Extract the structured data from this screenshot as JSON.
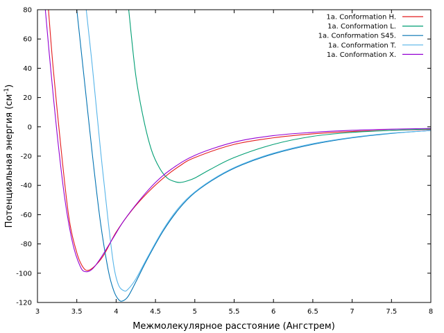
{
  "chart_data": {
    "type": "line",
    "title": "",
    "xlabel": "Межмолекулярное расстояние (Ангстрем)",
    "ylabel_main": "Потенциальная энергия (см",
    "ylabel_sup": "-1",
    "ylabel_end": ")",
    "xlim": [
      3,
      8
    ],
    "ylim": [
      -120,
      80
    ],
    "x_ticks": [
      "3",
      "3.5",
      "4",
      "4.5",
      "5",
      "5.5",
      "6",
      "6.5",
      "7",
      "7.5",
      "8"
    ],
    "y_ticks": [
      "-120",
      "-100",
      "-80",
      "-60",
      "-40",
      "-20",
      "0",
      "20",
      "40",
      "60",
      "80"
    ],
    "grid": false,
    "legend_position": "top-right",
    "series": [
      {
        "name": "1a. Conformation H.",
        "color": "#e41a1c",
        "points": [
          [
            3.14,
            80
          ],
          [
            3.2,
            40
          ],
          [
            3.3,
            -15
          ],
          [
            3.4,
            -62
          ],
          [
            3.5,
            -86
          ],
          [
            3.58,
            -96
          ],
          [
            3.65,
            -98
          ],
          [
            3.75,
            -94
          ],
          [
            3.85,
            -87
          ],
          [
            4.0,
            -72
          ],
          [
            4.2,
            -57
          ],
          [
            4.4,
            -45
          ],
          [
            4.6,
            -35
          ],
          [
            4.8,
            -27
          ],
          [
            5.0,
            -21
          ],
          [
            5.5,
            -12
          ],
          [
            6.0,
            -7.5
          ],
          [
            6.5,
            -4.8
          ],
          [
            7.0,
            -3.2
          ],
          [
            7.5,
            -2.4
          ],
          [
            8.0,
            -1.8
          ]
        ]
      },
      {
        "name": "1a. Conformation L.",
        "color": "#009e73",
        "points": [
          [
            4.16,
            80
          ],
          [
            4.25,
            35
          ],
          [
            4.35,
            5
          ],
          [
            4.45,
            -16
          ],
          [
            4.55,
            -28
          ],
          [
            4.65,
            -35
          ],
          [
            4.75,
            -37.5
          ],
          [
            4.82,
            -38
          ],
          [
            4.9,
            -37
          ],
          [
            5.0,
            -35
          ],
          [
            5.2,
            -29
          ],
          [
            5.5,
            -21
          ],
          [
            6.0,
            -12
          ],
          [
            6.5,
            -6.5
          ],
          [
            7.0,
            -3.8
          ],
          [
            7.5,
            -2.4
          ],
          [
            8.0,
            -1.5
          ]
        ]
      },
      {
        "name": "1a. Conformation S45.",
        "color": "#0072b2",
        "points": [
          [
            3.5,
            80
          ],
          [
            3.6,
            30
          ],
          [
            3.7,
            -20
          ],
          [
            3.8,
            -65
          ],
          [
            3.9,
            -98
          ],
          [
            3.97,
            -112
          ],
          [
            4.03,
            -118
          ],
          [
            4.08,
            -119
          ],
          [
            4.15,
            -116
          ],
          [
            4.25,
            -106
          ],
          [
            4.4,
            -90
          ],
          [
            4.6,
            -71
          ],
          [
            4.8,
            -56
          ],
          [
            5.0,
            -45
          ],
          [
            5.3,
            -34
          ],
          [
            5.6,
            -26
          ],
          [
            6.0,
            -18.5
          ],
          [
            6.5,
            -12
          ],
          [
            7.0,
            -7.5
          ],
          [
            7.5,
            -4.5
          ],
          [
            8.0,
            -2.5
          ]
        ]
      },
      {
        "name": "1a. Conformation T.",
        "color": "#56b4e9",
        "points": [
          [
            3.62,
            80
          ],
          [
            3.7,
            40
          ],
          [
            3.8,
            -15
          ],
          [
            3.9,
            -65
          ],
          [
            3.97,
            -95
          ],
          [
            4.03,
            -108
          ],
          [
            4.1,
            -112
          ],
          [
            4.15,
            -111
          ],
          [
            4.25,
            -104
          ],
          [
            4.4,
            -89
          ],
          [
            4.6,
            -70
          ],
          [
            4.8,
            -55
          ],
          [
            5.0,
            -44.5
          ],
          [
            5.3,
            -33.5
          ],
          [
            5.6,
            -25.5
          ],
          [
            6.0,
            -18
          ],
          [
            6.5,
            -11.5
          ],
          [
            7.0,
            -7.2
          ],
          [
            7.5,
            -4.3
          ],
          [
            8.0,
            -2.5
          ]
        ]
      },
      {
        "name": "1a. Conformation X.",
        "color": "#9400d3",
        "points": [
          [
            3.1,
            80
          ],
          [
            3.15,
            50
          ],
          [
            3.25,
            -5
          ],
          [
            3.35,
            -50
          ],
          [
            3.45,
            -80
          ],
          [
            3.55,
            -96
          ],
          [
            3.62,
            -99
          ],
          [
            3.7,
            -97
          ],
          [
            3.8,
            -90
          ],
          [
            3.95,
            -77
          ],
          [
            4.1,
            -64
          ],
          [
            4.3,
            -50
          ],
          [
            4.5,
            -38
          ],
          [
            4.7,
            -29
          ],
          [
            5.0,
            -19.5
          ],
          [
            5.5,
            -10.5
          ],
          [
            6.0,
            -6
          ],
          [
            6.5,
            -3.8
          ],
          [
            7.0,
            -2.4
          ],
          [
            7.5,
            -1.6
          ],
          [
            8.0,
            -1.1
          ]
        ]
      }
    ]
  }
}
